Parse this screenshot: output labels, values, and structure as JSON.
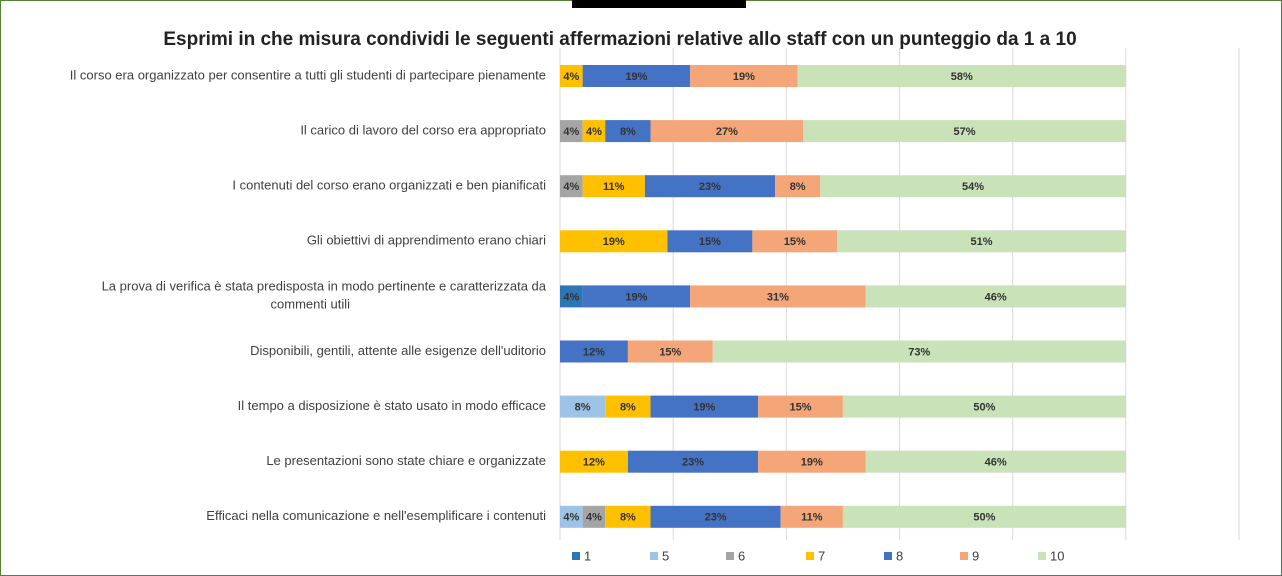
{
  "chart_data": {
    "type": "stacked_barh",
    "title": "Esprimi in che misura condividi le seguenti affermazioni relative allo staff con un punteggio da 1 a 10",
    "categories": [
      "Il corso era organizzato per consentire a tutti gli studenti di partecipare pienamente",
      "Il carico di lavoro del corso era appropriato",
      "I contenuti del corso erano organizzati e ben pianificati",
      "Gli obiettivi di apprendimento erano chiari",
      "La prova di verifica è stata predisposta in modo pertinente e caratterizzata da commenti utili",
      "Disponibili, gentili, attente alle esigenze dell'uditorio",
      "Il tempo a disposizione è stato usato in modo efficace",
      "Le presentazioni sono state chiare e organizzate",
      "Efficaci nella comunicazione e nell'esemplificare i contenuti"
    ],
    "series": [
      {
        "name": "1",
        "color": "#2e75b6",
        "values": [
          null,
          null,
          null,
          null,
          4,
          null,
          null,
          null,
          null
        ],
        "value_labels": [
          null,
          null,
          null,
          null,
          "4%",
          null,
          null,
          null,
          null
        ]
      },
      {
        "name": "5",
        "color": "#9dc3e6",
        "values": [
          null,
          null,
          null,
          null,
          null,
          null,
          8,
          null,
          4
        ],
        "value_labels": [
          null,
          null,
          null,
          null,
          null,
          null,
          "8%",
          null,
          "4%"
        ]
      },
      {
        "name": "6",
        "color": "#a5a5a5",
        "values": [
          null,
          4,
          4,
          null,
          null,
          null,
          null,
          null,
          4
        ],
        "value_labels": [
          null,
          "4%",
          "4%",
          null,
          null,
          null,
          null,
          null,
          "4%"
        ]
      },
      {
        "name": "7",
        "color": "#ffc000",
        "values": [
          4,
          4,
          11,
          19,
          null,
          null,
          8,
          12,
          8
        ],
        "value_labels": [
          "4%",
          "4%",
          "11%",
          "19%",
          null,
          null,
          "8%",
          "12%",
          "8%"
        ]
      },
      {
        "name": "8",
        "color": "#4472c4",
        "values": [
          19,
          8,
          23,
          15,
          19,
          12,
          19,
          23,
          23
        ],
        "value_labels": [
          "19%",
          "8%",
          "23%",
          "15%",
          "19%",
          "12%",
          "19%",
          "23%",
          "23%"
        ]
      },
      {
        "name": "9",
        "color": "#f4a679",
        "values": [
          19,
          27,
          8,
          15,
          31,
          15,
          15,
          19,
          11
        ],
        "value_labels": [
          "19%",
          "27%",
          "8%",
          "15%",
          "31%",
          "15%",
          "15%",
          "19%",
          "11%"
        ]
      },
      {
        "name": "10",
        "color": "#c9e2b8",
        "values": [
          58,
          57,
          54,
          51,
          46,
          73,
          50,
          46,
          50
        ],
        "value_labels": [
          "58%",
          "57%",
          "54%",
          "51%",
          "46%",
          "73%",
          "50%",
          "46%",
          "50%"
        ]
      }
    ],
    "xlim": [
      0,
      120
    ],
    "xticks": [
      0,
      20,
      40,
      60,
      80,
      100,
      120
    ],
    "grid": true,
    "legend": "bottom"
  }
}
